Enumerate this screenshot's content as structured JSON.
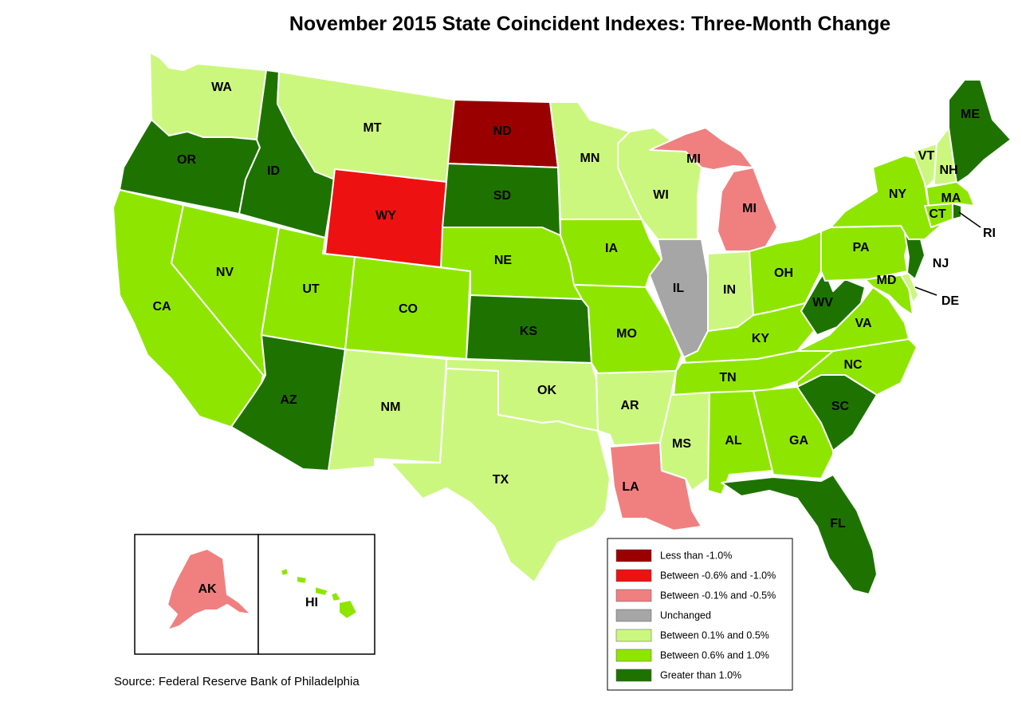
{
  "title": "November 2015 State Coincident Indexes: Three-Month Change",
  "source": "Source: Federal Reserve Bank of Philadelphia",
  "legend": [
    {
      "key": "lt_m1",
      "label": "Less than -1.0%",
      "color": "#9b0000"
    },
    {
      "key": "m06_m10",
      "label": "Between -0.6% and -1.0%",
      "color": "#ee1111"
    },
    {
      "key": "m01_m05",
      "label": "Between -0.1% and -0.5%",
      "color": "#f08080"
    },
    {
      "key": "unch",
      "label": "Unchanged",
      "color": "#a6a6a6"
    },
    {
      "key": "p01_p05",
      "label": "Between 0.1% and 0.5%",
      "color": "#ccf77f"
    },
    {
      "key": "p06_p10",
      "label": "Between 0.6% and 1.0%",
      "color": "#8ee600"
    },
    {
      "key": "gt_p1",
      "label": "Greater than 1.0%",
      "color": "#1e7300"
    }
  ],
  "states": [
    {
      "abbr": "WA",
      "category": "p01_p05"
    },
    {
      "abbr": "OR",
      "category": "gt_p1"
    },
    {
      "abbr": "CA",
      "category": "p06_p10"
    },
    {
      "abbr": "ID",
      "category": "gt_p1"
    },
    {
      "abbr": "NV",
      "category": "p06_p10"
    },
    {
      "abbr": "MT",
      "category": "p01_p05"
    },
    {
      "abbr": "WY",
      "category": "m06_m10"
    },
    {
      "abbr": "UT",
      "category": "p06_p10"
    },
    {
      "abbr": "AZ",
      "category": "gt_p1"
    },
    {
      "abbr": "CO",
      "category": "p06_p10"
    },
    {
      "abbr": "NM",
      "category": "p01_p05"
    },
    {
      "abbr": "ND",
      "category": "lt_m1"
    },
    {
      "abbr": "SD",
      "category": "gt_p1"
    },
    {
      "abbr": "NE",
      "category": "p06_p10"
    },
    {
      "abbr": "KS",
      "category": "gt_p1"
    },
    {
      "abbr": "OK",
      "category": "p01_p05"
    },
    {
      "abbr": "TX",
      "category": "p01_p05"
    },
    {
      "abbr": "MN",
      "category": "p01_p05"
    },
    {
      "abbr": "IA",
      "category": "p06_p10"
    },
    {
      "abbr": "MO",
      "category": "p06_p10"
    },
    {
      "abbr": "AR",
      "category": "p01_p05"
    },
    {
      "abbr": "LA",
      "category": "m01_m05"
    },
    {
      "abbr": "WI",
      "category": "p01_p05"
    },
    {
      "abbr": "IL",
      "category": "unch"
    },
    {
      "abbr": "MI",
      "category": "m01_m05"
    },
    {
      "abbr": "IN",
      "category": "p01_p05"
    },
    {
      "abbr": "OH",
      "category": "p06_p10"
    },
    {
      "abbr": "KY",
      "category": "p06_p10"
    },
    {
      "abbr": "TN",
      "category": "p06_p10"
    },
    {
      "abbr": "MS",
      "category": "p01_p05"
    },
    {
      "abbr": "AL",
      "category": "p06_p10"
    },
    {
      "abbr": "GA",
      "category": "p06_p10"
    },
    {
      "abbr": "FL",
      "category": "gt_p1"
    },
    {
      "abbr": "SC",
      "category": "gt_p1"
    },
    {
      "abbr": "NC",
      "category": "p06_p10"
    },
    {
      "abbr": "VA",
      "category": "p06_p10"
    },
    {
      "abbr": "WV",
      "category": "gt_p1"
    },
    {
      "abbr": "MD",
      "category": "p06_p10"
    },
    {
      "abbr": "DE",
      "category": "p01_p05"
    },
    {
      "abbr": "PA",
      "category": "p06_p10"
    },
    {
      "abbr": "NJ",
      "category": "gt_p1"
    },
    {
      "abbr": "NY",
      "category": "p06_p10"
    },
    {
      "abbr": "CT",
      "category": "p06_p10"
    },
    {
      "abbr": "RI",
      "category": "gt_p1"
    },
    {
      "abbr": "MA",
      "category": "p06_p10"
    },
    {
      "abbr": "VT",
      "category": "p01_p05"
    },
    {
      "abbr": "NH",
      "category": "p01_p05"
    },
    {
      "abbr": "ME",
      "category": "gt_p1"
    },
    {
      "abbr": "AK",
      "category": "m01_m05"
    },
    {
      "abbr": "HI",
      "category": "p06_p10"
    }
  ]
}
